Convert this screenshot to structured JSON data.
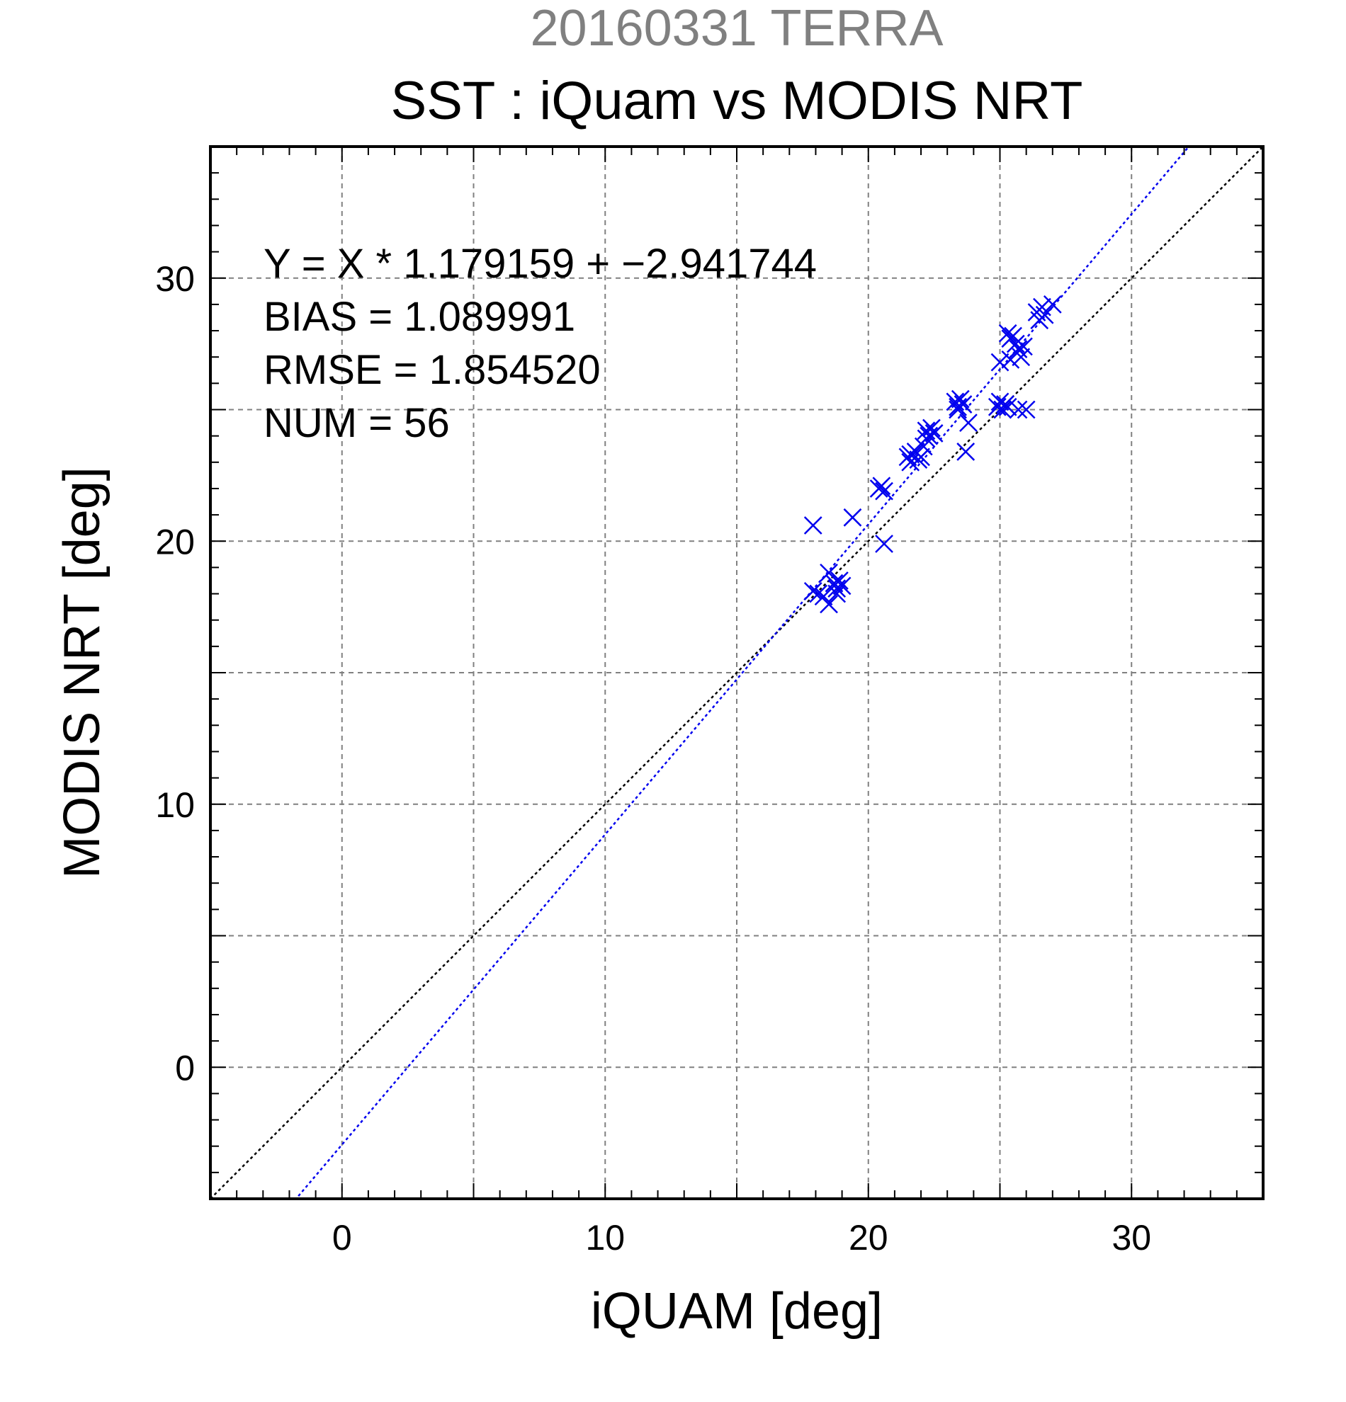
{
  "chart_data": {
    "type": "scatter",
    "title": "20160331 TERRA",
    "subtitle": "SST : iQuam vs MODIS NRT",
    "xlabel": "iQUAM [deg]",
    "ylabel": "MODIS NRT [deg]",
    "xlim": [
      -5,
      35
    ],
    "ylim": [
      -5,
      35
    ],
    "xticks": [
      0,
      10,
      20,
      30
    ],
    "yticks": [
      0,
      10,
      20,
      30
    ],
    "grid": true,
    "annotations": [
      "Y = X * 1.179159 + −2.941744",
      "BIAS = 1.089991",
      "RMSE = 1.854520",
      "NUM = 56"
    ],
    "regression": {
      "slope": 1.179159,
      "intercept": -2.941744
    },
    "marker_color": "#0000ee",
    "fit_line_color": "#0000ee",
    "identity_line_color": "#000000",
    "points": [
      [
        17.9,
        20.6
      ],
      [
        17.9,
        18.1
      ],
      [
        18.1,
        18.0
      ],
      [
        18.3,
        17.9
      ],
      [
        18.5,
        17.6
      ],
      [
        18.5,
        18.8
      ],
      [
        18.7,
        18.4
      ],
      [
        18.8,
        18.2
      ],
      [
        18.9,
        18.5
      ],
      [
        19.0,
        18.3
      ],
      [
        19.4,
        20.9
      ],
      [
        20.4,
        22.0
      ],
      [
        20.5,
        22.1
      ],
      [
        20.6,
        21.9
      ],
      [
        20.6,
        19.9
      ],
      [
        21.5,
        23.2
      ],
      [
        21.6,
        23.0
      ],
      [
        21.8,
        23.4
      ],
      [
        21.9,
        23.1
      ],
      [
        22.0,
        23.2
      ],
      [
        22.1,
        23.6
      ],
      [
        22.2,
        24.2
      ],
      [
        22.3,
        24.0
      ],
      [
        22.4,
        24.3
      ],
      [
        22.5,
        24.1
      ],
      [
        23.3,
        25.3
      ],
      [
        23.4,
        25.1
      ],
      [
        23.5,
        25.4
      ],
      [
        23.6,
        25.2
      ],
      [
        23.7,
        23.4
      ],
      [
        23.8,
        24.5
      ],
      [
        24.9,
        25.1
      ],
      [
        25.0,
        25.3
      ],
      [
        25.0,
        26.8
      ],
      [
        25.1,
        25.0
      ],
      [
        25.2,
        25.2
      ],
      [
        25.3,
        27.9
      ],
      [
        25.4,
        27.7
      ],
      [
        25.4,
        26.9
      ],
      [
        25.5,
        27.8
      ],
      [
        25.6,
        27.5
      ],
      [
        25.7,
        27.3
      ],
      [
        25.7,
        25.0
      ],
      [
        25.8,
        27.0
      ],
      [
        25.9,
        27.4
      ],
      [
        26.0,
        25.0
      ],
      [
        26.4,
        28.7
      ],
      [
        26.5,
        28.4
      ],
      [
        26.6,
        28.9
      ],
      [
        26.7,
        28.6
      ],
      [
        27.0,
        29.0
      ],
      [
        25.3,
        25.1
      ],
      [
        23.4,
        25.0
      ],
      [
        22.2,
        23.9
      ],
      [
        21.6,
        23.3
      ],
      [
        18.8,
        18.0
      ]
    ]
  }
}
